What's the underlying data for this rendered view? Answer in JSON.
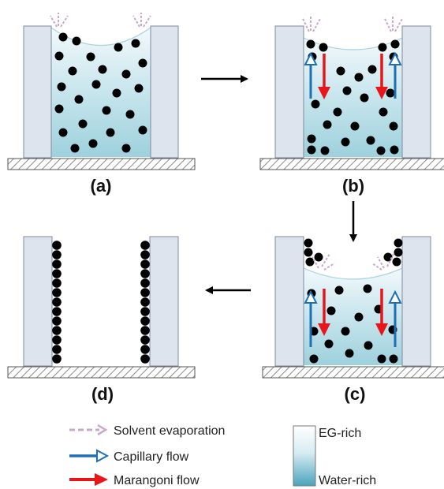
{
  "panels": [
    {
      "id": "a",
      "label": "(a)"
    },
    {
      "id": "b",
      "label": "(b)"
    },
    {
      "id": "c",
      "label": "(c)"
    },
    {
      "id": "d",
      "label": "(d)"
    }
  ],
  "legend": {
    "evaporation": "Solvent evaporation",
    "capillary": "Capillary flow",
    "marangoni": "Marangoni flow",
    "gradient_top": "EG-rich",
    "gradient_bottom": "Water-rich"
  },
  "colors": {
    "wall": "#dde4ee",
    "wall_stroke": "#7d8ca0",
    "liquid_top": "#f4fafc",
    "liquid_bottom": "#7fc3d3",
    "particle": "#000000",
    "capillary": "#1f6fb5",
    "marangoni": "#e8151b",
    "evaporation": "#c9a9c9",
    "substrate_hatch": "#8a8a8a",
    "arrow": "#000000"
  }
}
